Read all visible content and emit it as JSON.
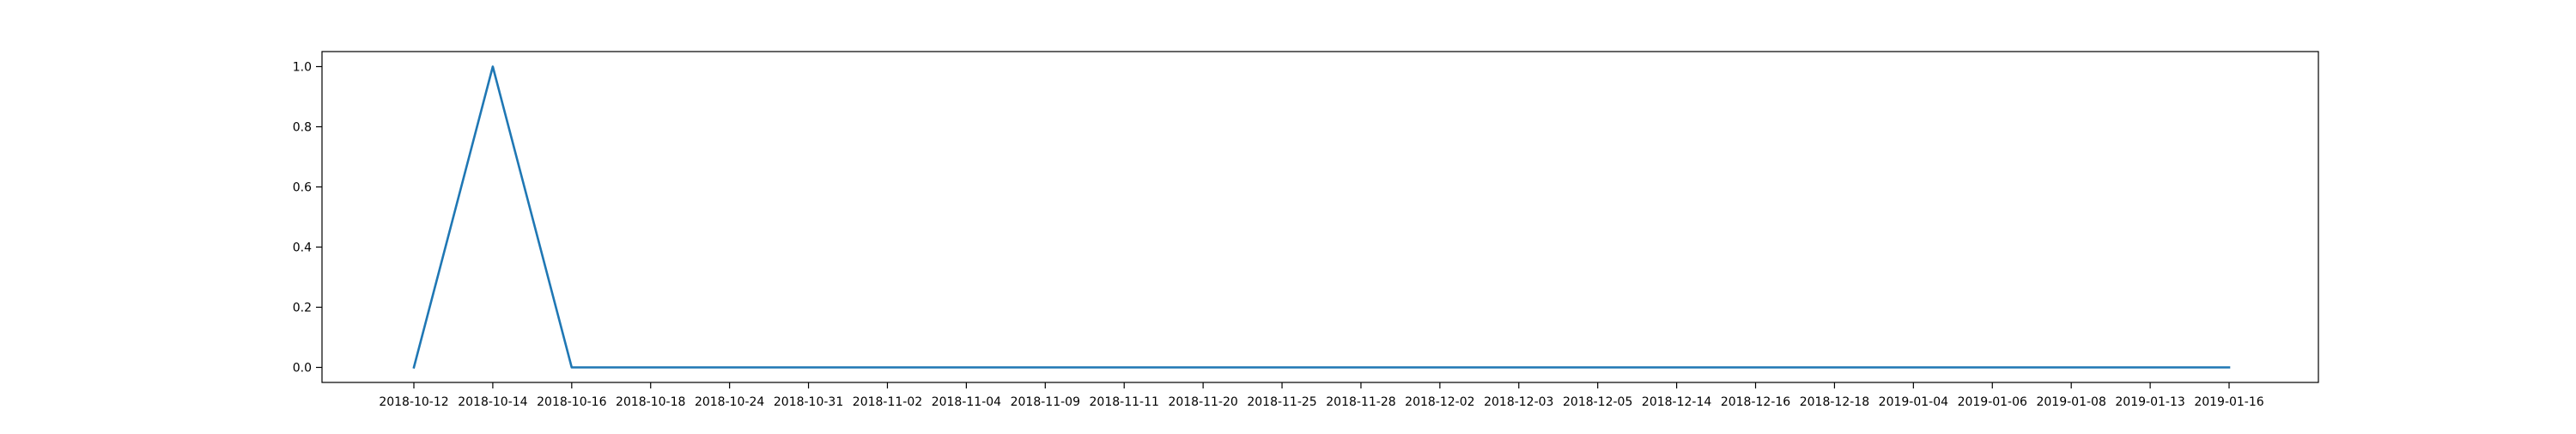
{
  "chart_data": {
    "type": "line",
    "title": "",
    "xlabel": "",
    "ylabel": "",
    "categories": [
      "2018-10-12",
      "2018-10-14",
      "2018-10-16",
      "2018-10-18",
      "2018-10-24",
      "2018-10-31",
      "2018-11-02",
      "2018-11-04",
      "2018-11-09",
      "2018-11-11",
      "2018-11-20",
      "2018-11-25",
      "2018-11-28",
      "2018-12-02",
      "2018-12-03",
      "2018-12-05",
      "2018-12-14",
      "2018-12-16",
      "2018-12-18",
      "2019-01-04",
      "2019-01-06",
      "2019-01-08",
      "2019-01-13",
      "2019-01-16"
    ],
    "series": [
      {
        "values": [
          0,
          1,
          0,
          0,
          0,
          0,
          0,
          0,
          0,
          0,
          0,
          0,
          0,
          0,
          0,
          0,
          0,
          0,
          0,
          0,
          0,
          0,
          0,
          0
        ],
        "color": "#1f77b4"
      }
    ],
    "yticks": [
      "0.0",
      "0.2",
      "0.4",
      "0.6",
      "0.8",
      "1.0"
    ],
    "ylim": [
      -0.05,
      1.05
    ],
    "grid": false,
    "legend": "none"
  }
}
